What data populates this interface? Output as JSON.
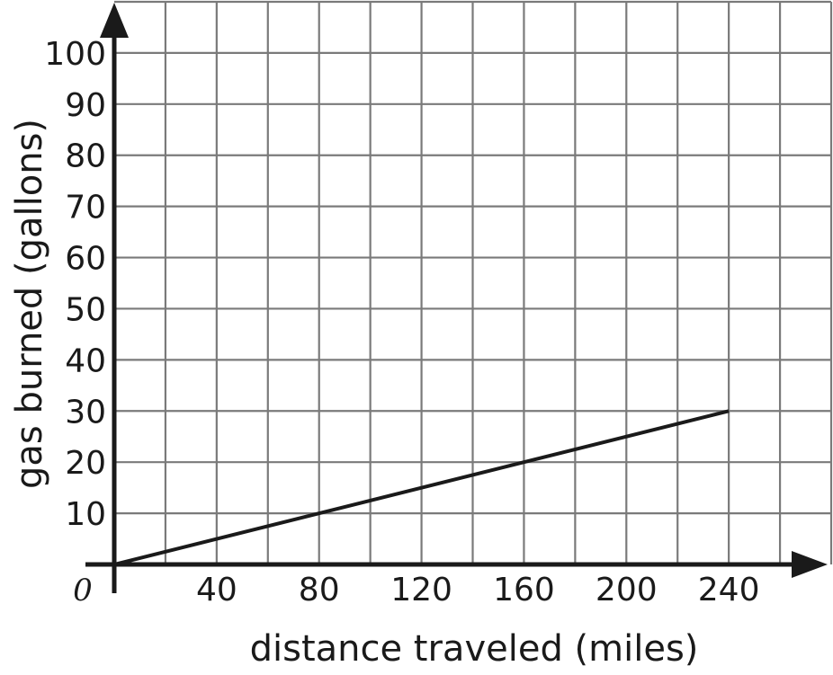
{
  "chart_data": {
    "type": "line",
    "title": "",
    "xlabel": "distance traveled (miles)",
    "ylabel": "gas burned (gallons)",
    "xlim": [
      0,
      280
    ],
    "ylim": [
      0,
      110
    ],
    "grid": true,
    "grid_step": {
      "x": 20,
      "y": 10
    },
    "x_ticks": [
      40,
      80,
      120,
      160,
      200,
      240
    ],
    "x_tick_labels": [
      "40",
      "80",
      "120",
      "160",
      "200",
      "240"
    ],
    "y_ticks": [
      10,
      20,
      30,
      40,
      50,
      60,
      70,
      80,
      90,
      100
    ],
    "y_tick_labels": [
      "10",
      "20",
      "30",
      "40",
      "50",
      "60",
      "70",
      "80",
      "90",
      "100"
    ],
    "origin_label": "0",
    "series": [
      {
        "x": [
          0,
          240
        ],
        "y": [
          0,
          30
        ],
        "color": "#1a1a1a"
      }
    ],
    "colors": {
      "grid": "#7a7a7a",
      "axis": "#1a1a1a"
    }
  }
}
